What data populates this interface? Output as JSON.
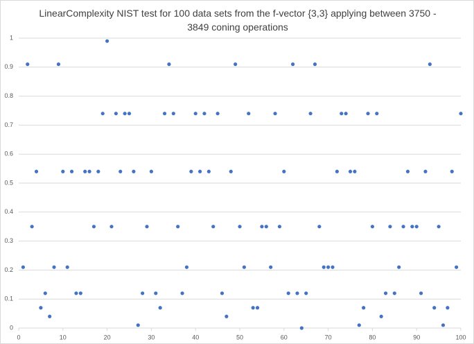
{
  "chart_data": {
    "type": "scatter",
    "title": "LinearComplexity NIST test for 100 data sets from the f-vector {3,3} applying between 3750 - 3849 coning operations",
    "series": [
      {
        "color": "#4472c4",
        "x": [
          1,
          2,
          3,
          4,
          5,
          6,
          7,
          8,
          9,
          10,
          11,
          12,
          13,
          14,
          15,
          16,
          17,
          18,
          19,
          20,
          21,
          22,
          23,
          24,
          25,
          26,
          27,
          28,
          29,
          30,
          31,
          32,
          33,
          34,
          35,
          36,
          37,
          38,
          39,
          40,
          41,
          42,
          43,
          44,
          45,
          46,
          47,
          48,
          49,
          50,
          51,
          52,
          53,
          54,
          55,
          56,
          57,
          58,
          59,
          60,
          61,
          62,
          63,
          64,
          65,
          66,
          67,
          68,
          69,
          70,
          71,
          72,
          73,
          74,
          75,
          76,
          77,
          78,
          79,
          80,
          81,
          82,
          83,
          84,
          85,
          86,
          87,
          88,
          89,
          90,
          91,
          92,
          93,
          94,
          95,
          96,
          97,
          98,
          99,
          100
        ],
        "values": [
          0.21,
          0.91,
          0.35,
          0.54,
          0.07,
          0.12,
          0.04,
          0.21,
          0.91,
          0.54,
          0.21,
          0.54,
          0.12,
          0.12,
          0.54,
          0.54,
          0.35,
          0.54,
          0.74,
          0.99,
          0.35,
          0.74,
          0.54,
          0.74,
          0.74,
          0.54,
          0.01,
          0.12,
          0.35,
          0.54,
          0.12,
          0.07,
          0.74,
          0.91,
          0.74,
          0.35,
          0.12,
          0.21,
          0.54,
          0.74,
          0.54,
          0.74,
          0.54,
          0.35,
          0.74,
          0.12,
          0.04,
          0.54,
          0.91,
          0.35,
          0.21,
          0.74,
          0.07,
          0.07,
          0.35,
          0.35,
          0.21,
          0.74,
          0.35,
          0.54,
          0.12,
          0.91,
          0.12,
          0.0,
          0.12,
          0.74,
          0.91,
          0.35,
          0.21,
          0.21,
          0.21,
          0.54,
          0.74,
          0.74,
          0.54,
          0.54,
          0.01,
          0.07,
          0.74,
          0.35,
          0.74,
          0.04,
          0.12,
          0.35,
          0.12,
          0.21,
          0.35,
          0.54,
          0.35,
          0.35,
          0.12,
          0.54,
          0.91,
          0.07,
          0.35,
          0.01,
          0.07,
          0.54,
          0.21,
          0.74
        ]
      }
    ],
    "xlim": [
      0,
      100
    ],
    "xticks": [
      0,
      10,
      20,
      30,
      40,
      50,
      60,
      70,
      80,
      90,
      100
    ],
    "ylim": [
      0,
      1
    ],
    "yticks": [
      0,
      0.1,
      0.2,
      0.3,
      0.4,
      0.5,
      0.6,
      0.7,
      0.8,
      0.9,
      1
    ],
    "grid": true
  }
}
